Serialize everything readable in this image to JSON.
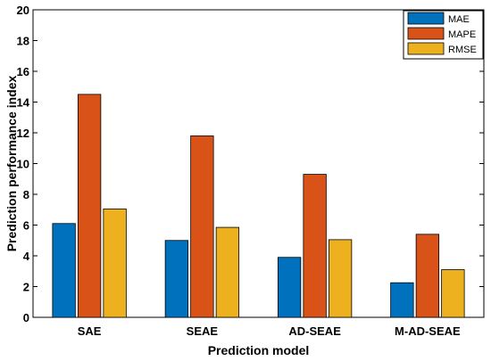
{
  "chart_data": {
    "type": "bar",
    "xlabel": "Prediction model",
    "ylabel": "Prediction performance index",
    "categories": [
      "SAE",
      "SEAE",
      "AD-SEAE",
      "M-AD-SEAE"
    ],
    "ylim": [
      0,
      20
    ],
    "yticks": [
      0,
      2,
      4,
      6,
      8,
      10,
      12,
      14,
      16,
      18,
      20
    ],
    "grid": false,
    "legend_position": "top-right",
    "series": [
      {
        "name": "MAE",
        "values": [
          6.1,
          5.0,
          3.9,
          2.25
        ],
        "color": "#0072BD"
      },
      {
        "name": "MAPE",
        "values": [
          14.5,
          11.8,
          9.3,
          5.4
        ],
        "color": "#D95319"
      },
      {
        "name": "RMSE",
        "values": [
          7.05,
          5.85,
          5.05,
          3.1
        ],
        "color": "#EDB120"
      }
    ]
  }
}
